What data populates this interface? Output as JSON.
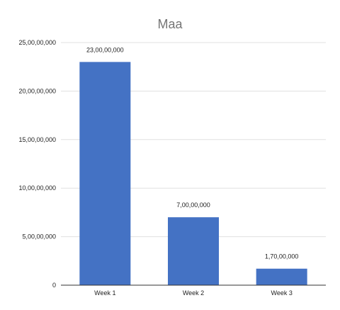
{
  "chart_data": {
    "type": "bar",
    "title": "Maa",
    "xlabel": "",
    "ylabel": "",
    "categories": [
      "Week 1",
      "Week 2",
      "Week 3"
    ],
    "values": [
      230000000,
      70000000,
      17000000
    ],
    "data_labels": [
      "23,00,00,000",
      "7,00,00,000",
      "1,70,00,000"
    ],
    "ylim": [
      0,
      250000000
    ],
    "yticks": [
      {
        "value": 0,
        "label": "0"
      },
      {
        "value": 50000000,
        "label": "5,00,00,000"
      },
      {
        "value": 100000000,
        "label": "10,00,00,000"
      },
      {
        "value": 150000000,
        "label": "15,00,00,000"
      },
      {
        "value": 200000000,
        "label": "20,00,00,000"
      },
      {
        "value": 250000000,
        "label": "25,00,00,000"
      }
    ],
    "grid": true,
    "legend": "none",
    "colors": {
      "bar": "#4472c4",
      "title": "#757575",
      "grid": "#e0e0e0",
      "axis": "#333333"
    }
  }
}
